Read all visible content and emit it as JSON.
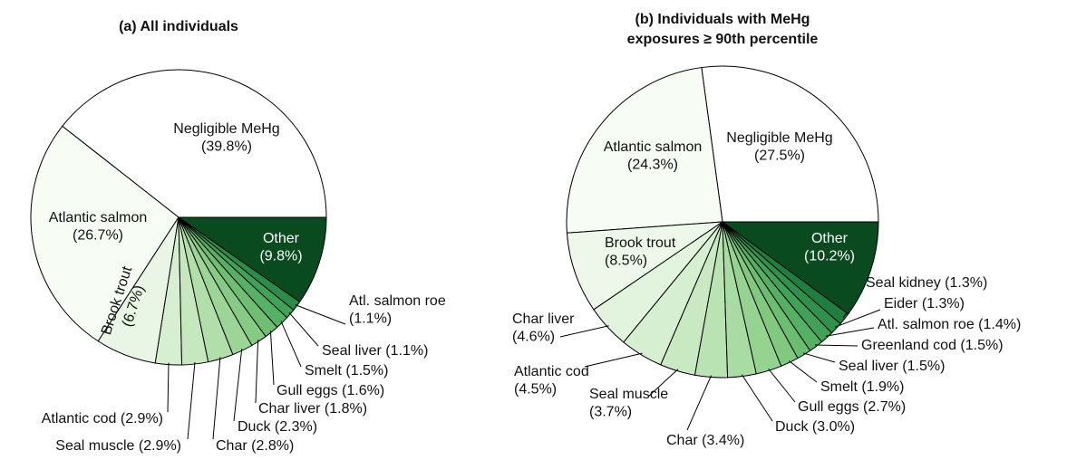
{
  "chart_data": [
    {
      "type": "pie",
      "title": [
        "(a) All individuals"
      ],
      "categories": [
        "Negligible MeHg",
        "Atlantic salmon",
        "Brook trout",
        "Atlantic cod",
        "Seal muscle",
        "Char",
        "Duck",
        "Char liver",
        "Gull eggs",
        "Smelt",
        "Seal liver",
        "Atl. salmon roe",
        "Other"
      ],
      "values": [
        39.8,
        26.7,
        6.7,
        2.9,
        2.9,
        2.8,
        2.3,
        1.8,
        1.6,
        1.5,
        1.1,
        1.1,
        9.8
      ],
      "value_labels": [
        "(39.8%)",
        "(26.7%)",
        "(6.7%)",
        "(2.9%)",
        "(2.9%)",
        "(2.8%)",
        "(2.3%)",
        "(1.8%)",
        "(1.6%)",
        "(1.5%)",
        "(1.1%)",
        "(1.1%)",
        "(9.8%)"
      ],
      "colors": [
        "#ffffff",
        "#f7fcf5",
        "#eaf6e5",
        "#d7efd1",
        "#c5e8bf",
        "#b0dfa9",
        "#9cd697",
        "#85cb83",
        "#6ebf72",
        "#55b164",
        "#3ea357",
        "#2a8e4a",
        "#0a4a1f"
      ]
    },
    {
      "type": "pie",
      "title": [
        "(b) Individuals with MeHg",
        "exposures ≥ 90th percentile"
      ],
      "categories": [
        "Negligible MeHg",
        "Atlantic salmon",
        "Brook trout",
        "Char liver",
        "Atlantic cod",
        "Seal muscle",
        "Char",
        "Duck",
        "Gull eggs",
        "Smelt",
        "Seal liver",
        "Greenland cod",
        "Atl. salmon roe",
        "Eider",
        "Seal kidney",
        "Other"
      ],
      "values": [
        27.5,
        24.3,
        8.5,
        4.6,
        4.5,
        3.7,
        3.4,
        3.0,
        2.7,
        1.9,
        1.5,
        1.5,
        1.4,
        1.3,
        1.3,
        10.2
      ],
      "value_labels": [
        "(27.5%)",
        "(24.3%)",
        "(8.5%)",
        "(4.6%)",
        "(4.5%)",
        "(3.7%)",
        "(3.4%)",
        "(3.0%)",
        "(2.7%)",
        "(1.9%)",
        "(1.5%)",
        "(1.5%)",
        "(1.4%)",
        "(1.3%)",
        "(1.3%)",
        "(10.2%)"
      ],
      "colors": [
        "#ffffff",
        "#f7fcf5",
        "#eef8ea",
        "#e3f4de",
        "#d6efd0",
        "#c8e9c1",
        "#b9e3b2",
        "#a8dca2",
        "#95d391",
        "#80c97f",
        "#6abe70",
        "#54b062",
        "#3fa256",
        "#2e914c",
        "#1f7f40",
        "#0a4a1f"
      ]
    }
  ]
}
